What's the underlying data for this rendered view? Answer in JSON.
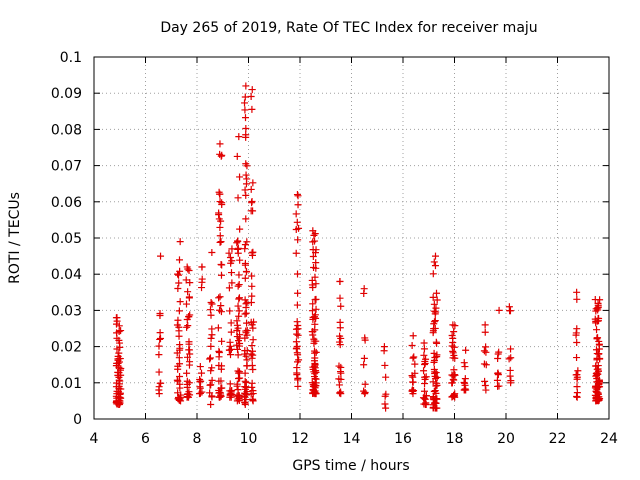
{
  "chart_data": {
    "type": "scatter",
    "title": "Day 265 of 2019, Rate Of TEC Index for receiver maju",
    "xlabel": "GPS time / hours",
    "ylabel": "ROTI / TECUs",
    "xlim": [
      4,
      24
    ],
    "ylim": [
      0,
      0.1
    ],
    "xticks": [
      4,
      6,
      8,
      10,
      12,
      14,
      16,
      18,
      20,
      22,
      24
    ],
    "xtick_labels": [
      "4",
      "6",
      "8",
      "10",
      "12",
      "14",
      "16",
      "18",
      "20",
      "22",
      "24"
    ],
    "yticks": [
      0,
      0.01,
      0.02,
      0.03,
      0.04,
      0.05,
      0.06,
      0.07,
      0.08,
      0.09,
      0.1
    ],
    "ytick_labels": [
      "0",
      "0.01",
      "0.02",
      "0.03",
      "0.04",
      "0.05",
      "0.06",
      "0.07",
      "0.08",
      "0.09",
      "0.1"
    ],
    "grid": true,
    "marker": "+",
    "marker_color": "#e00000",
    "clusters": [
      {
        "x": 4.95,
        "x_spread": 0.18,
        "y_min": 0.004,
        "y_max": 0.028,
        "n": 70
      },
      {
        "x": 6.55,
        "x_spread": 0.08,
        "y_min": 0.007,
        "y_max": 0.045,
        "n": 14
      },
      {
        "x": 7.3,
        "x_spread": 0.14,
        "y_min": 0.005,
        "y_max": 0.049,
        "n": 36
      },
      {
        "x": 7.65,
        "x_spread": 0.14,
        "y_min": 0.006,
        "y_max": 0.042,
        "n": 36
      },
      {
        "x": 8.15,
        "x_spread": 0.12,
        "y_min": 0.007,
        "y_max": 0.042,
        "n": 16
      },
      {
        "x": 8.55,
        "x_spread": 0.14,
        "y_min": 0.004,
        "y_max": 0.046,
        "n": 20
      },
      {
        "x": 8.9,
        "x_spread": 0.14,
        "y_min": 0.006,
        "y_max": 0.076,
        "n": 48
      },
      {
        "x": 9.3,
        "x_spread": 0.12,
        "y_min": 0.006,
        "y_max": 0.047,
        "n": 28
      },
      {
        "x": 9.6,
        "x_spread": 0.12,
        "y_min": 0.005,
        "y_max": 0.078,
        "n": 50
      },
      {
        "x": 9.9,
        "x_spread": 0.12,
        "y_min": 0.004,
        "y_max": 0.092,
        "n": 60
      },
      {
        "x": 10.15,
        "x_spread": 0.1,
        "y_min": 0.005,
        "y_max": 0.091,
        "n": 36
      },
      {
        "x": 11.9,
        "x_spread": 0.1,
        "y_min": 0.009,
        "y_max": 0.062,
        "n": 32
      },
      {
        "x": 12.55,
        "x_spread": 0.16,
        "y_min": 0.007,
        "y_max": 0.052,
        "n": 80
      },
      {
        "x": 13.55,
        "x_spread": 0.1,
        "y_min": 0.007,
        "y_max": 0.038,
        "n": 20
      },
      {
        "x": 14.5,
        "x_spread": 0.08,
        "y_min": 0.007,
        "y_max": 0.036,
        "n": 10
      },
      {
        "x": 15.3,
        "x_spread": 0.08,
        "y_min": 0.003,
        "y_max": 0.02,
        "n": 8
      },
      {
        "x": 16.4,
        "x_spread": 0.12,
        "y_min": 0.007,
        "y_max": 0.023,
        "n": 16
      },
      {
        "x": 16.85,
        "x_spread": 0.12,
        "y_min": 0.004,
        "y_max": 0.021,
        "n": 22
      },
      {
        "x": 17.25,
        "x_spread": 0.16,
        "y_min": 0.003,
        "y_max": 0.045,
        "n": 60
      },
      {
        "x": 17.95,
        "x_spread": 0.14,
        "y_min": 0.006,
        "y_max": 0.026,
        "n": 30
      },
      {
        "x": 18.4,
        "x_spread": 0.08,
        "y_min": 0.008,
        "y_max": 0.019,
        "n": 12
      },
      {
        "x": 19.2,
        "x_spread": 0.08,
        "y_min": 0.008,
        "y_max": 0.026,
        "n": 10
      },
      {
        "x": 19.7,
        "x_spread": 0.08,
        "y_min": 0.009,
        "y_max": 0.03,
        "n": 10
      },
      {
        "x": 20.15,
        "x_spread": 0.08,
        "y_min": 0.01,
        "y_max": 0.031,
        "n": 10
      },
      {
        "x": 22.75,
        "x_spread": 0.08,
        "y_min": 0.006,
        "y_max": 0.035,
        "n": 16
      },
      {
        "x": 23.55,
        "x_spread": 0.18,
        "y_min": 0.005,
        "y_max": 0.033,
        "n": 90
      }
    ]
  }
}
